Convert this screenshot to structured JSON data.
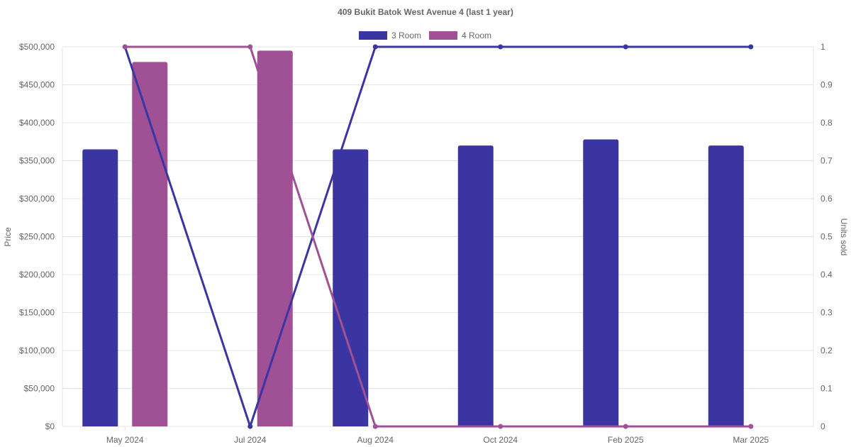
{
  "chart_data": {
    "type": "bar",
    "title": "409 Bukit Batok West Avenue 4 (last 1 year)",
    "categories": [
      "May 2024",
      "Jul 2024",
      "Aug 2024",
      "Oct 2024",
      "Feb 2025",
      "Mar 2025"
    ],
    "bar_series": [
      {
        "name": "3 Room",
        "color": "#3a35a0",
        "values": [
          365000,
          null,
          365000,
          370000,
          378000,
          370000
        ]
      },
      {
        "name": "4 Room",
        "color": "#a05095",
        "values": [
          480000,
          495000,
          null,
          null,
          null,
          null
        ]
      }
    ],
    "line_series": [
      {
        "name": "3 Room",
        "color": "#3a35a0",
        "values": [
          1,
          0,
          1,
          1,
          1,
          1
        ]
      },
      {
        "name": "4 Room",
        "color": "#a05095",
        "values": [
          1,
          1,
          0,
          0,
          0,
          0
        ]
      }
    ],
    "y_left": {
      "label": "Price",
      "min": 0,
      "max": 500000,
      "ticks": [
        "$0",
        "$50,000",
        "$100,000",
        "$150,000",
        "$200,000",
        "$250,000",
        "$300,000",
        "$350,000",
        "$400,000",
        "$450,000",
        "$500,000"
      ]
    },
    "y_right": {
      "label": "Units sold",
      "min": 0,
      "max": 1,
      "ticks": [
        "0",
        "0.1",
        "0.2",
        "0.3",
        "0.4",
        "0.5",
        "0.6",
        "0.7",
        "0.8",
        "0.9",
        "1"
      ]
    },
    "legend": {
      "position": "top",
      "items": [
        {
          "name": "3 Room",
          "color": "#3a35a0"
        },
        {
          "name": "4 Room",
          "color": "#a05095"
        }
      ]
    },
    "grid": true
  }
}
